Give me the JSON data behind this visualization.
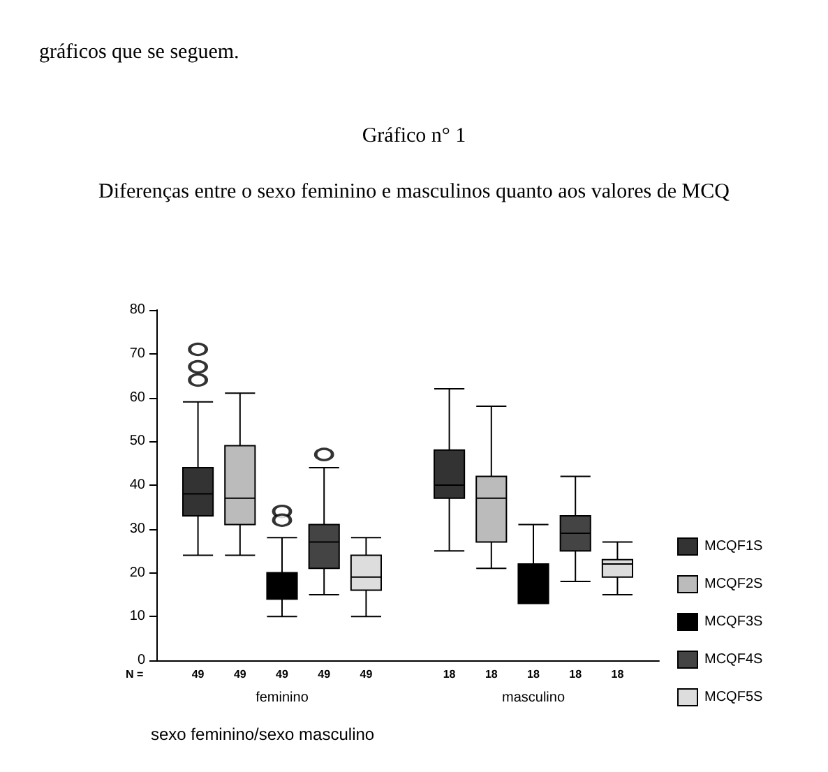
{
  "chart_data": {
    "type": "box",
    "title": "Gráfico n° 1",
    "subtitle": "Diferenças entre o sexo feminino e masculinos quanto aos valores de MCQ",
    "xlabel": "sexo feminino/sexo masculino",
    "categories": [
      "feminino",
      "masculino"
    ],
    "ylim": [
      0,
      80
    ],
    "yticks": [
      0,
      10,
      20,
      30,
      40,
      50,
      60,
      70,
      80
    ],
    "grid": false,
    "legend": "right",
    "marker": "circle",
    "series": [
      {
        "name": "MCQF1S",
        "color": "#333333",
        "boxes": [
          {
            "low": 24,
            "q1": 33,
            "median": 38,
            "q3": 44,
            "high": 59,
            "outliers": [
              71,
              67,
              64
            ]
          },
          {
            "low": 25,
            "q1": 37,
            "median": 40,
            "q3": 48,
            "high": 62
          }
        ]
      },
      {
        "name": "MCQF2S",
        "color": "#bbbbbb",
        "boxes": [
          {
            "low": 24,
            "q1": 31,
            "median": 37,
            "q3": 49,
            "high": 61
          },
          {
            "low": 21,
            "q1": 27,
            "median": 37,
            "q3": 42,
            "high": 58
          }
        ]
      },
      {
        "name": "MCQF3S",
        "color": "#000000",
        "boxes": [
          {
            "low": 10,
            "q1": 14,
            "median": 17,
            "q3": 20,
            "high": 28,
            "outliers": [
              34,
              32
            ]
          },
          {
            "low": 13,
            "q1": 13,
            "median": 17,
            "q3": 22,
            "high": 31
          }
        ]
      },
      {
        "name": "MCQF4S",
        "color": "#444444",
        "boxes": [
          {
            "low": 15,
            "q1": 21,
            "median": 27,
            "q3": 31,
            "high": 44,
            "outliers": [
              47
            ]
          },
          {
            "low": 18,
            "q1": 25,
            "median": 29,
            "q3": 33,
            "high": 42
          }
        ]
      },
      {
        "name": "MCQF5S",
        "color": "#dddddd",
        "boxes": [
          {
            "low": 10,
            "q1": 16,
            "median": 19,
            "q3": 24,
            "high": 28
          },
          {
            "low": 15,
            "q1": 19,
            "median": 22,
            "q3": 23,
            "high": 27
          }
        ]
      }
    ],
    "annotations": [
      "gráficos que se seguem.",
      "N =",
      "49",
      "49",
      "49",
      "49",
      "49",
      "18",
      "18",
      "18",
      "18",
      "18"
    ]
  }
}
